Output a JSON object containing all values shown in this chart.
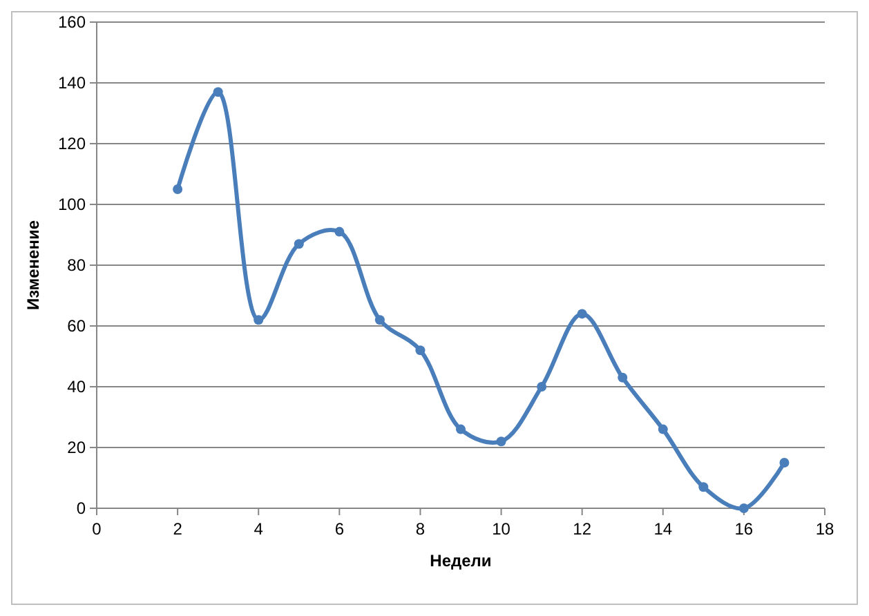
{
  "chart_data": {
    "type": "line",
    "xlabel": "Недели",
    "ylabel": "Изменение",
    "x": [
      2,
      3,
      4,
      5,
      6,
      7,
      8,
      9,
      10,
      11,
      12,
      13,
      14,
      15,
      16,
      17
    ],
    "series": [
      {
        "color": "#4a7ebb",
        "values": [
          105,
          137,
          62,
          87,
          91,
          62,
          52,
          26,
          22,
          40,
          64,
          43,
          26,
          7,
          0,
          15
        ]
      }
    ],
    "xlim": [
      0,
      18
    ],
    "xticks": [
      0,
      2,
      4,
      6,
      8,
      10,
      12,
      14,
      16,
      18
    ],
    "ylim": [
      0,
      160
    ],
    "yticks": [
      0,
      20,
      40,
      60,
      80,
      100,
      120,
      140,
      160
    ],
    "grid": "y",
    "marker": "circle",
    "line_style": "solid"
  }
}
